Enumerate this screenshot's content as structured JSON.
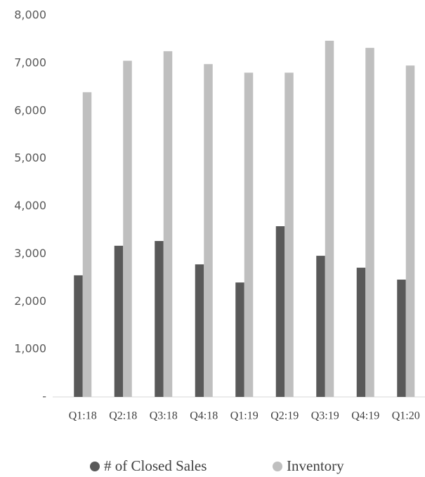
{
  "chart_data": {
    "type": "bar",
    "categories": [
      "Q1:18",
      "Q2:18",
      "Q3:18",
      "Q4:18",
      "Q1:19",
      "Q2:19",
      "Q3:19",
      "Q4:19",
      "Q1:20"
    ],
    "series": [
      {
        "name": "# of Closed Sales",
        "color": "#595959",
        "values": [
          2550,
          3170,
          3270,
          2780,
          2400,
          3580,
          2960,
          2710,
          2460
        ]
      },
      {
        "name": "Inventory",
        "color": "#bfbfbf",
        "values": [
          6390,
          7050,
          7250,
          6980,
          6800,
          6800,
          7470,
          7320,
          6950
        ]
      }
    ],
    "ylim": [
      0,
      8000
    ],
    "yticks": [
      {
        "value": 0,
        "label": "-"
      },
      {
        "value": 1000,
        "label": "1,000"
      },
      {
        "value": 2000,
        "label": "2,000"
      },
      {
        "value": 3000,
        "label": "3,000"
      },
      {
        "value": 4000,
        "label": "4,000"
      },
      {
        "value": 5000,
        "label": "5,000"
      },
      {
        "value": 6000,
        "label": "6,000"
      },
      {
        "value": 7000,
        "label": "7,000"
      },
      {
        "value": 8000,
        "label": "8,000"
      }
    ],
    "grid": false,
    "legend": "bottom"
  }
}
